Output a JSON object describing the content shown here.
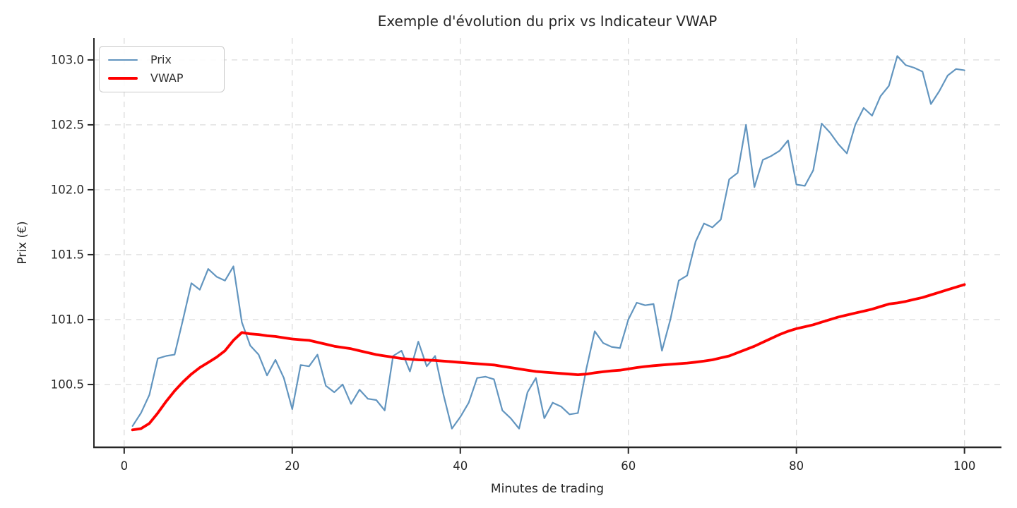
{
  "title": "Exemple d'évolution du prix vs Indicateur VWAP",
  "chart_data": {
    "type": "line",
    "title": "Exemple d'évolution du prix vs Indicateur VWAP",
    "xlabel": "Minutes de trading",
    "ylabel": "Prix (€)",
    "grid": true,
    "legend_position": "upper-left",
    "xlim": [
      -3.6,
      104.4
    ],
    "ylim": [
      100.016,
      103.168
    ],
    "xticks": [
      0,
      20,
      40,
      60,
      80,
      100
    ],
    "xtick_labels": [
      "0",
      "20",
      "40",
      "60",
      "80",
      "100"
    ],
    "yticks": [
      100.5,
      101.0,
      101.5,
      102.0,
      102.5,
      103.0
    ],
    "ytick_labels": [
      "100.5",
      "101.0",
      "101.5",
      "102.0",
      "102.5",
      "103.0"
    ],
    "x": [
      1,
      2,
      3,
      4,
      5,
      6,
      7,
      8,
      9,
      10,
      11,
      12,
      13,
      14,
      15,
      16,
      17,
      18,
      19,
      20,
      21,
      22,
      23,
      24,
      25,
      26,
      27,
      28,
      29,
      30,
      31,
      32,
      33,
      34,
      35,
      36,
      37,
      38,
      39,
      40,
      41,
      42,
      43,
      44,
      45,
      46,
      47,
      48,
      49,
      50,
      51,
      52,
      53,
      54,
      55,
      56,
      57,
      58,
      59,
      60,
      61,
      62,
      63,
      64,
      65,
      66,
      67,
      68,
      69,
      70,
      71,
      72,
      73,
      74,
      75,
      76,
      77,
      78,
      79,
      80,
      81,
      82,
      83,
      84,
      85,
      86,
      87,
      88,
      89,
      90,
      91,
      92,
      93,
      94,
      95,
      96,
      97,
      98,
      99,
      100
    ],
    "series": [
      {
        "name": "Prix",
        "color": "#4682B4",
        "opacity": 0.85,
        "width": 2.2,
        "values": [
          100.18,
          100.28,
          100.42,
          100.7,
          100.72,
          100.73,
          101.0,
          101.28,
          101.23,
          101.39,
          101.33,
          101.3,
          101.41,
          100.98,
          100.8,
          100.73,
          100.57,
          100.69,
          100.55,
          100.31,
          100.65,
          100.64,
          100.73,
          100.49,
          100.44,
          100.5,
          100.35,
          100.46,
          100.39,
          100.38,
          100.3,
          100.72,
          100.76,
          100.6,
          100.83,
          100.64,
          100.72,
          100.42,
          100.16,
          100.25,
          100.36,
          100.55,
          100.56,
          100.54,
          100.3,
          100.24,
          100.16,
          100.44,
          100.55,
          100.24,
          100.36,
          100.33,
          100.27,
          100.28,
          100.62,
          100.91,
          100.82,
          100.79,
          100.78,
          101.0,
          101.13,
          101.11,
          101.12,
          100.76,
          101.0,
          101.3,
          101.34,
          101.6,
          101.74,
          101.71,
          101.77,
          102.08,
          102.13,
          102.5,
          102.02,
          102.23,
          102.26,
          102.3,
          102.38,
          102.04,
          102.03,
          102.15,
          102.51,
          102.44,
          102.35,
          102.28,
          102.5,
          102.63,
          102.57,
          102.72,
          102.8,
          103.03,
          102.96,
          102.94,
          102.91,
          102.66,
          102.76,
          102.88,
          102.93,
          102.92
        ]
      },
      {
        "name": "VWAP",
        "color": "#ff0000",
        "opacity": 1,
        "width": 3.8,
        "values": [
          100.15,
          100.16,
          100.2,
          100.28,
          100.37,
          100.45,
          100.52,
          100.58,
          100.63,
          100.67,
          100.71,
          100.76,
          100.84,
          100.9,
          100.89,
          100.885,
          100.875,
          100.87,
          100.86,
          100.85,
          100.845,
          100.84,
          100.825,
          100.81,
          100.795,
          100.785,
          100.775,
          100.76,
          100.745,
          100.73,
          100.72,
          100.71,
          100.7,
          100.695,
          100.69,
          100.688,
          100.685,
          100.68,
          100.675,
          100.67,
          100.665,
          100.66,
          100.655,
          100.65,
          100.64,
          100.63,
          100.62,
          100.61,
          100.6,
          100.595,
          100.59,
          100.585,
          100.58,
          100.575,
          100.58,
          100.59,
          100.598,
          100.605,
          100.61,
          100.62,
          100.63,
          100.638,
          100.645,
          100.65,
          100.655,
          100.66,
          100.665,
          100.672,
          100.68,
          100.69,
          100.705,
          100.72,
          100.745,
          100.77,
          100.795,
          100.825,
          100.855,
          100.885,
          100.91,
          100.93,
          100.945,
          100.96,
          100.98,
          101.0,
          101.02,
          101.035,
          101.05,
          101.065,
          101.08,
          101.1,
          101.12,
          101.128,
          101.14,
          101.155,
          101.17,
          101.19,
          101.21,
          101.23,
          101.25,
          101.27
        ]
      }
    ],
    "style": {
      "grid_color": "#d8d8d8",
      "spine_color": "#262626",
      "text_color": "#262626"
    }
  },
  "legend": {
    "items": [
      {
        "label": "Prix"
      },
      {
        "label": "VWAP"
      }
    ]
  }
}
